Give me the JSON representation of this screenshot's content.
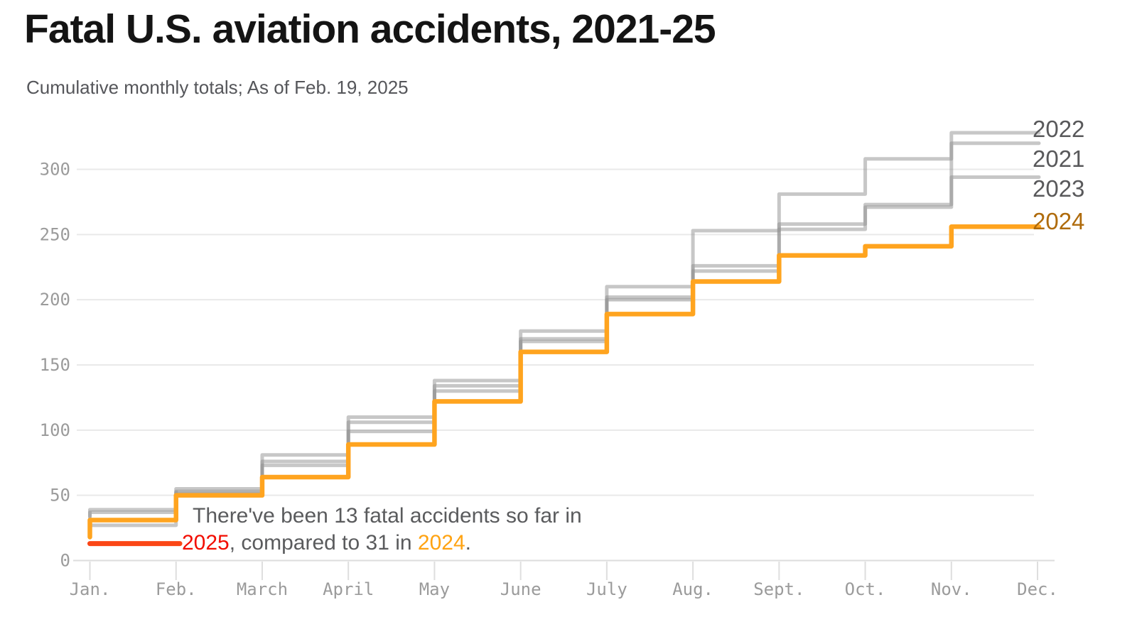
{
  "header": {
    "title": "Fatal U.S. aviation accidents, 2021-25",
    "subtitle": "Cumulative monthly totals; As of Feb. 19, 2025"
  },
  "annotation": {
    "line1": "There've been 13 fatal accidents so far in",
    "line2_year_2025": "2025",
    "line2_middle": ", compared to 31 in ",
    "line2_year_2024": "2024",
    "line2_end": ".",
    "count_2025": 13,
    "count_2024": 31,
    "color_2025_text": "#f20d00",
    "color_2024_text": "#ffa312",
    "text_color": "#5a5b5d"
  },
  "chart_data": {
    "type": "line",
    "subtype": "cumulative-step",
    "title": "Fatal U.S. aviation accidents, 2021-25",
    "subtitle": "Cumulative monthly totals; As of Feb. 19, 2025",
    "xlabel": "",
    "ylabel": "",
    "x_tick_labels": [
      "Jan.",
      "Feb.",
      "March",
      "April",
      "May",
      "June",
      "July",
      "Aug.",
      "Sept.",
      "Oct.",
      "Nov.",
      "Dec."
    ],
    "yticks": [
      0,
      50,
      100,
      150,
      200,
      250,
      300
    ],
    "ylim": [
      0,
      340
    ],
    "grid": "horizontal",
    "legend_position": "right-edge-direct-labels",
    "value_months": [
      "Jan",
      "Feb",
      "Mar",
      "Apr",
      "May",
      "Jun",
      "Jul",
      "Aug",
      "Sep",
      "Oct",
      "Nov-Dec"
    ],
    "series": [
      {
        "name": "2021",
        "color": "#8f8f8f",
        "opacity": 0.5,
        "width": 5,
        "label_color": "#59595b",
        "start_riser": 34,
        "cumulative": [
          39,
          55,
          76,
          106,
          134,
          170,
          202,
          226,
          258,
          273,
          320
        ]
      },
      {
        "name": "2022",
        "color": "#8f8f8f",
        "opacity": 0.5,
        "width": 5,
        "label_color": "#59595b",
        "start_riser": 32,
        "cumulative": [
          37,
          53,
          81,
          110,
          138,
          176,
          210,
          253,
          281,
          308,
          328
        ]
      },
      {
        "name": "2023",
        "color": "#8f8f8f",
        "opacity": 0.5,
        "width": 5,
        "label_color": "#59595b",
        "start_riser": 22,
        "cumulative": [
          27,
          52,
          73,
          99,
          130,
          168,
          200,
          222,
          254,
          271,
          294
        ]
      },
      {
        "name": "2024",
        "color": "#ffa41f",
        "opacity": 1,
        "width": 6.5,
        "label_color": "#af6b0c",
        "start_riser": 18,
        "cumulative": [
          31,
          50,
          64,
          89,
          122,
          160,
          189,
          214,
          234,
          241,
          256
        ]
      },
      {
        "name": "2025",
        "color": "#fb4616",
        "opacity": 1,
        "width": 7,
        "label_color": null,
        "partial": true,
        "through": "Feb. 19, 2025",
        "cumulative": [
          13
        ]
      }
    ]
  },
  "axis_colors": {
    "grid": "#e9e9e9",
    "zero_line": "#dcdcdc",
    "tick": "#dedede",
    "labels": "#9b9b9b"
  }
}
